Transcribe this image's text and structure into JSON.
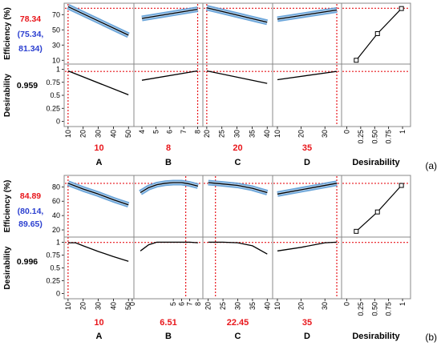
{
  "colors": {
    "red": "#e8161b",
    "blue": "#2b3fd0",
    "band": "#5b9bd5",
    "line": "#000000",
    "frame": "#888888"
  },
  "chart_data": [
    {
      "type": "line",
      "label": "(a)",
      "predicted_value": "78.34",
      "ci_text_line1": "(75.34,",
      "ci_text_line2": "81.34)",
      "desirability_value": "0.959",
      "efficiency_axis_label": "Efficiency (%)",
      "desirability_axis_label": "Desirability",
      "eff_ylim": [
        5,
        85
      ],
      "eff_ticks": [
        "70",
        "50",
        "30",
        "10"
      ],
      "des_ylim": [
        -0.1,
        1.1
      ],
      "des_ticks": [
        "1",
        "0.75",
        "0.5",
        "0.25",
        "0"
      ],
      "eff_ref": 78.34,
      "des_ref": 0.959,
      "factors": [
        {
          "name": "A",
          "setting": "10",
          "set_x": 10,
          "xlim": [
            9,
            52
          ],
          "ticks": [
            "10",
            "20",
            "30",
            "40",
            "50"
          ],
          "efficiency": {
            "x": [
              10,
              50
            ],
            "y": [
              80.5,
              43
            ]
          },
          "desirability": {
            "x": [
              10,
              50
            ],
            "y": [
              0.97,
              0.51
            ]
          }
        },
        {
          "name": "B",
          "setting": "8",
          "set_x": 8,
          "xlim": [
            3.6,
            8.2
          ],
          "ticks": [
            "4",
            "5",
            "6",
            "7",
            "8"
          ],
          "efficiency": {
            "x": [
              4,
              8
            ],
            "y": [
              65,
              77
            ]
          },
          "desirability": {
            "x": [
              4,
              8
            ],
            "y": [
              0.79,
              0.97
            ]
          }
        },
        {
          "name": "C",
          "setting": "20",
          "set_x": 20,
          "xlim": [
            19.5,
            41
          ],
          "ticks": [
            "20",
            "25",
            "30",
            "35",
            "40"
          ],
          "efficiency": {
            "x": [
              20,
              40
            ],
            "y": [
              79,
              60
            ]
          },
          "desirability": {
            "x": [
              20,
              40
            ],
            "y": [
              0.97,
              0.73
            ]
          }
        },
        {
          "name": "D",
          "setting": "35",
          "set_x": 35,
          "xlim": [
            9,
            36
          ],
          "ticks": [
            "10",
            "20",
            "30"
          ],
          "efficiency": {
            "x": [
              10,
              35
            ],
            "y": [
              64,
              76
            ]
          },
          "desirability": {
            "x": [
              10,
              35
            ],
            "y": [
              0.8,
              0.96
            ]
          }
        }
      ],
      "desirability_panel": {
        "name": "Desirability",
        "xlim": [
          -0.05,
          1.1
        ],
        "ticks": [
          "0",
          "0.25",
          "0.50",
          "0.75",
          "1"
        ],
        "x": [
          0.17,
          0.55,
          0.98
        ],
        "y": [
          10,
          45,
          78
        ]
      }
    },
    {
      "type": "line",
      "label": "(b)",
      "predicted_value": "84.89",
      "ci_text_line1": "(80.14,",
      "ci_text_line2": "89.65)",
      "desirability_value": "0.996",
      "efficiency_axis_label": "Efficiency (%)",
      "desirability_axis_label": "Desirability",
      "eff_ylim": [
        10,
        96
      ],
      "eff_ticks": [
        "80",
        "60",
        "40",
        "20"
      ],
      "des_ylim": [
        -0.1,
        1.1
      ],
      "des_ticks": [
        "1",
        "0.75",
        "0.5",
        "0.25",
        "0"
      ],
      "eff_ref": 84.89,
      "des_ref": 0.996,
      "factors": [
        {
          "name": "A",
          "setting": "10",
          "set_x": 10,
          "xlim": [
            9,
            52
          ],
          "ticks": [
            "10",
            "20",
            "30",
            "40",
            "50"
          ],
          "efficiency": {
            "x": [
              10,
              20,
              30,
              40,
              50
            ],
            "y": [
              85,
              77,
              70,
              62,
              55
            ]
          },
          "desirability": {
            "x": [
              10,
              15,
              20,
              30,
              40,
              50
            ],
            "y": [
              0.99,
              0.99,
              0.93,
              0.82,
              0.72,
              0.63
            ]
          }
        },
        {
          "name": "B",
          "setting": "6.51",
          "set_x": 6.51,
          "xlim": [
            0.5,
            8.3
          ],
          "ticks": [
            "0",
            "5",
            "6",
            "7",
            "8"
          ],
          "efficiency": {
            "x": [
              1,
              2,
              3,
              4,
              5,
              6,
              6.51,
              7,
              8
            ],
            "y": [
              72,
              79,
              83,
              85,
              86,
              86,
              85,
              84,
              81
            ]
          },
          "desirability": {
            "x": [
              1,
              2,
              3,
              4,
              5,
              6,
              7,
              8
            ],
            "y": [
              0.83,
              0.95,
              1.0,
              1.0,
              1.0,
              1.0,
              1.0,
              0.99
            ]
          }
        },
        {
          "name": "C",
          "setting": "22.45",
          "set_x": 22.45,
          "xlim": [
            19,
            41
          ],
          "ticks": [
            "20",
            "25",
            "30",
            "35",
            "40"
          ],
          "efficiency": {
            "x": [
              20,
              22.45,
              25,
              30,
              35,
              40
            ],
            "y": [
              86,
              85,
              84,
              82,
              78,
              72
            ]
          },
          "desirability": {
            "x": [
              20,
              25,
              30,
              35,
              40
            ],
            "y": [
              1.0,
              1.0,
              0.99,
              0.93,
              0.77
            ]
          }
        },
        {
          "name": "D",
          "setting": "35",
          "set_x": 35,
          "xlim": [
            9,
            36
          ],
          "ticks": [
            "10",
            "20",
            "30"
          ],
          "efficiency": {
            "x": [
              10,
              35
            ],
            "y": [
              70,
              85
            ]
          },
          "desirability": {
            "x": [
              10,
              20,
              30,
              35
            ],
            "y": [
              0.83,
              0.9,
              0.99,
              1.0
            ]
          }
        }
      ],
      "desirability_panel": {
        "name": "Desirability",
        "xlim": [
          -0.05,
          1.1
        ],
        "ticks": [
          "0",
          "0.25",
          "0.50",
          "0.75",
          "1"
        ],
        "x": [
          0.17,
          0.55,
          0.98
        ],
        "y": [
          18,
          45,
          82
        ]
      }
    }
  ]
}
